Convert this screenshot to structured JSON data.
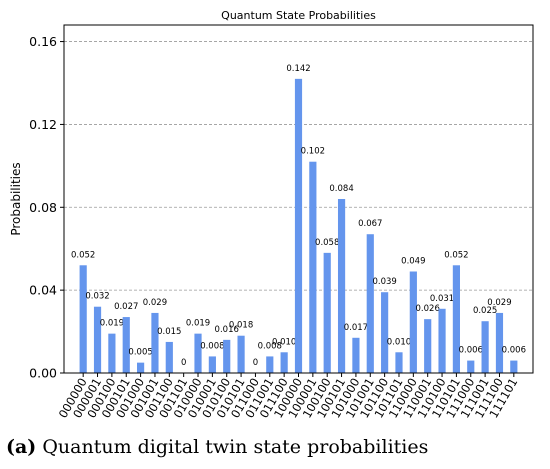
{
  "chart_data": {
    "type": "bar",
    "title": "Quantum State Probabilities",
    "ylabel": "Probabilities",
    "xlabel": "",
    "ylim": [
      0,
      0.168
    ],
    "yticks": [
      "0.00",
      "0.04",
      "0.08",
      "0.12",
      "0.16"
    ],
    "grid": "y-dashed",
    "bar_color": "#6495ED",
    "categories": [
      "000000",
      "000001",
      "000100",
      "000101",
      "001000",
      "001001",
      "001100",
      "001101",
      "010000",
      "010001",
      "010100",
      "010101",
      "011000",
      "011001",
      "011100",
      "100000",
      "100001",
      "100100",
      "100101",
      "101000",
      "101001",
      "101100",
      "101101",
      "110000",
      "110001",
      "110100",
      "110101",
      "111000",
      "111001",
      "111100",
      "111101"
    ],
    "values": [
      0.052,
      0.032,
      0.019,
      0.027,
      0.005,
      0.029,
      0.015,
      0,
      0.019,
      0.008,
      0.016,
      0.018,
      0,
      0.008,
      0.01,
      0.142,
      0.102,
      0.058,
      0.084,
      0.017,
      0.067,
      0.039,
      0.01,
      0.049,
      0.026,
      0.031,
      0.052,
      0.006,
      0.025,
      0.029,
      0.006
    ],
    "labels": [
      "0.052",
      "0.032",
      "0.019",
      "0.027",
      "0.005",
      "0.029",
      "0.015",
      "0",
      "0.019",
      "0.008",
      "0.016",
      "0.018",
      "0",
      "0.008",
      "0.010",
      "0.142",
      "0.102",
      "0.058",
      "0.084",
      "0.017",
      "0.067",
      "0.039",
      "0.010",
      "0.049",
      "0.026",
      "0.031",
      "0.052",
      "0.006",
      "0.025",
      "0.029",
      "0.006"
    ]
  },
  "caption": {
    "tag": "(a)",
    "text": " Quantum digital twin state probabilities"
  }
}
